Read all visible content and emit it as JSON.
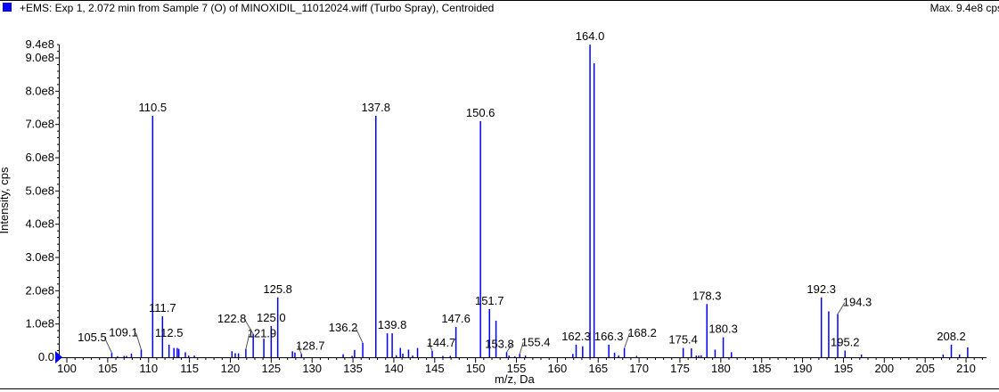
{
  "header": {
    "title": "+EMS: Exp 1, 2.072 min from Sample 7 (O) of MINOXIDIL_11012024.wiff (Turbo Spray), Centroided",
    "max": "Max. 9.4e8 cps",
    "marker_color": "#0000ff"
  },
  "chart_data": {
    "type": "bar",
    "xlabel": "m/z, Da",
    "ylabel": "Intensity, cps",
    "xlim": [
      98.7,
      212.5
    ],
    "ylim": [
      0,
      940000000.0
    ],
    "xticks": [
      100,
      105,
      110,
      115,
      120,
      125,
      130,
      135,
      140,
      145,
      150,
      155,
      160,
      165,
      170,
      175,
      180,
      185,
      190,
      195,
      200,
      205,
      210
    ],
    "yticks": [
      {
        "v": 0,
        "l": "0.0"
      },
      {
        "v": 100000000.0,
        "l": "1.0e8"
      },
      {
        "v": 200000000.0,
        "l": "2.0e8"
      },
      {
        "v": 300000000.0,
        "l": "3.0e8"
      },
      {
        "v": 400000000.0,
        "l": "4.0e8"
      },
      {
        "v": 500000000.0,
        "l": "5.0e8"
      },
      {
        "v": 600000000.0,
        "l": "6.0e8"
      },
      {
        "v": 700000000.0,
        "l": "7.0e8"
      },
      {
        "v": 800000000.0,
        "l": "8.0e8"
      },
      {
        "v": 900000000.0,
        "l": "9.0e8"
      },
      {
        "v": 940000000.0,
        "l": "9.4e8"
      }
    ],
    "bar_color": "#0000ff",
    "peaks": [
      {
        "x": 105.5,
        "y": 13000000.0,
        "label": "105.5"
      },
      {
        "x": 106.2,
        "y": 3000000.0
      },
      {
        "x": 107.0,
        "y": 4000000.0
      },
      {
        "x": 107.3,
        "y": 4000000.0
      },
      {
        "x": 107.9,
        "y": 11000000.0
      },
      {
        "x": 109.1,
        "y": 23000000.0,
        "label": "109.1"
      },
      {
        "x": 110.5,
        "y": 726000000.0,
        "label": "110.5"
      },
      {
        "x": 111.7,
        "y": 123000000.0,
        "label": "111.7"
      },
      {
        "x": 112.5,
        "y": 38000000.0,
        "label": "112.5"
      },
      {
        "x": 113.1,
        "y": 28000000.0
      },
      {
        "x": 113.5,
        "y": 28000000.0
      },
      {
        "x": 113.7,
        "y": 25000000.0
      },
      {
        "x": 114.5,
        "y": 15000000.0
      },
      {
        "x": 114.9,
        "y": 5000000.0
      },
      {
        "x": 115.6,
        "y": 5000000.0
      },
      {
        "x": 120.2,
        "y": 18000000.0
      },
      {
        "x": 120.6,
        "y": 12000000.0
      },
      {
        "x": 121.0,
        "y": 12000000.0
      },
      {
        "x": 121.9,
        "y": 25000000.0,
        "label": "121.9"
      },
      {
        "x": 122.8,
        "y": 70000000.0,
        "label": "122.8"
      },
      {
        "x": 124.1,
        "y": 56000000.0
      },
      {
        "x": 125.0,
        "y": 94000000.0,
        "label": "125.0"
      },
      {
        "x": 125.8,
        "y": 180000000.0,
        "label": "125.8"
      },
      {
        "x": 127.6,
        "y": 18000000.0
      },
      {
        "x": 127.9,
        "y": 14000000.0
      },
      {
        "x": 128.7,
        "y": 10000000.0,
        "label": "128.7"
      },
      {
        "x": 133.8,
        "y": 9000000.0
      },
      {
        "x": 134.9,
        "y": 4000000.0
      },
      {
        "x": 135.2,
        "y": 22000000.0
      },
      {
        "x": 136.2,
        "y": 43000000.0,
        "label": "136.2"
      },
      {
        "x": 137.8,
        "y": 726000000.0,
        "label": "137.8"
      },
      {
        "x": 139.2,
        "y": 72000000.0
      },
      {
        "x": 139.8,
        "y": 72000000.0,
        "label": "139.8"
      },
      {
        "x": 140.3,
        "y": 6000000.0
      },
      {
        "x": 140.8,
        "y": 28000000.0
      },
      {
        "x": 141.1,
        "y": 11000000.0
      },
      {
        "x": 141.8,
        "y": 23000000.0
      },
      {
        "x": 142.3,
        "y": 5000000.0
      },
      {
        "x": 142.9,
        "y": 28000000.0
      },
      {
        "x": 144.7,
        "y": 19000000.0,
        "label": "144.7"
      },
      {
        "x": 146.0,
        "y": 4000000.0
      },
      {
        "x": 146.9,
        "y": 4000000.0
      },
      {
        "x": 147.6,
        "y": 91000000.0,
        "label": "147.6"
      },
      {
        "x": 150.6,
        "y": 710000000.0,
        "label": "150.6"
      },
      {
        "x": 151.7,
        "y": 145000000.0,
        "label": "151.7"
      },
      {
        "x": 152.5,
        "y": 110000000.0
      },
      {
        "x": 153.8,
        "y": 15000000.0,
        "label": "153.8"
      },
      {
        "x": 154.1,
        "y": 5000000.0
      },
      {
        "x": 154.8,
        "y": 3000000.0
      },
      {
        "x": 155.4,
        "y": 10000000.0,
        "label": "155.4"
      },
      {
        "x": 156.1,
        "y": 5000000.0
      },
      {
        "x": 161.9,
        "y": 10000000.0
      },
      {
        "x": 162.3,
        "y": 38000000.0,
        "label": "162.3"
      },
      {
        "x": 163.1,
        "y": 33000000.0
      },
      {
        "x": 164.0,
        "y": 940000000.0,
        "label": "164.0"
      },
      {
        "x": 164.5,
        "y": 884000000.0
      },
      {
        "x": 166.3,
        "y": 38000000.0,
        "label": "166.3"
      },
      {
        "x": 167.0,
        "y": 14000000.0
      },
      {
        "x": 167.5,
        "y": 5000000.0
      },
      {
        "x": 168.2,
        "y": 27000000.0,
        "label": "168.2"
      },
      {
        "x": 169.7,
        "y": 4000000.0
      },
      {
        "x": 175.4,
        "y": 28000000.0,
        "label": "175.4"
      },
      {
        "x": 176.4,
        "y": 27000000.0
      },
      {
        "x": 177.0,
        "y": 5000000.0
      },
      {
        "x": 177.3,
        "y": 5000000.0
      },
      {
        "x": 177.6,
        "y": 6000000.0
      },
      {
        "x": 178.3,
        "y": 160000000.0,
        "label": "178.3"
      },
      {
        "x": 179.3,
        "y": 23000000.0
      },
      {
        "x": 180.3,
        "y": 60000000.0,
        "label": "180.3"
      },
      {
        "x": 181.3,
        "y": 15000000.0
      },
      {
        "x": 192.3,
        "y": 180000000.0,
        "label": "192.3"
      },
      {
        "x": 193.2,
        "y": 138000000.0
      },
      {
        "x": 194.3,
        "y": 130000000.0,
        "label": "194.3"
      },
      {
        "x": 195.2,
        "y": 20000000.0,
        "label": "195.2"
      },
      {
        "x": 197.2,
        "y": 8000000.0
      },
      {
        "x": 207.2,
        "y": 8000000.0
      },
      {
        "x": 208.2,
        "y": 38000000.0,
        "label": "208.2"
      },
      {
        "x": 209.2,
        "y": 8000000.0
      },
      {
        "x": 210.2,
        "y": 30000000.0
      }
    ]
  }
}
